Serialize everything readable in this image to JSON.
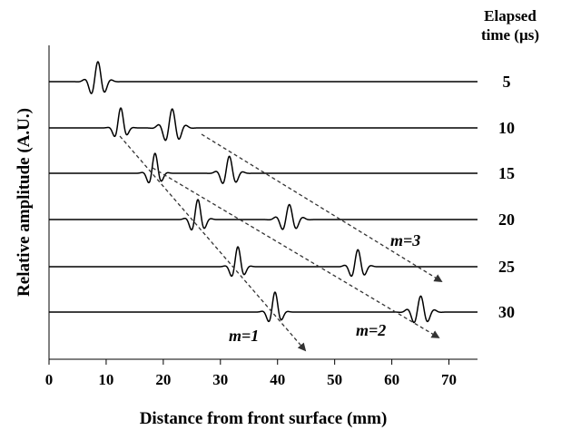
{
  "chart_data": {
    "type": "line",
    "xlabel": "Distance from front surface (mm)",
    "ylabel": "Relative amplitude (A.U.)",
    "xlim": [
      0,
      75
    ],
    "x_ticks": [
      "0",
      "10",
      "20",
      "30",
      "40",
      "50",
      "60",
      "70"
    ],
    "legend_title": [
      "Elapsed",
      "time (µs)"
    ],
    "legend_placement": "right",
    "grid": false,
    "series": [
      {
        "name": "5",
        "packets": [
          {
            "center": 8.5,
            "amp": 1.0,
            "width": 1.6
          }
        ]
      },
      {
        "name": "10",
        "packets": [
          {
            "center": 12.5,
            "amp": 1.0,
            "width": 1.2
          },
          {
            "center": 21.5,
            "amp": 0.95,
            "width": 1.8
          }
        ]
      },
      {
        "name": "15",
        "packets": [
          {
            "center": 18.5,
            "amp": 1.0,
            "width": 1.3
          },
          {
            "center": 31.5,
            "amp": 0.85,
            "width": 1.6
          }
        ]
      },
      {
        "name": "20",
        "packets": [
          {
            "center": 26.0,
            "amp": 1.0,
            "width": 1.4
          },
          {
            "center": 42.0,
            "amp": 0.75,
            "width": 1.8
          }
        ]
      },
      {
        "name": "25",
        "packets": [
          {
            "center": 33.0,
            "amp": 1.0,
            "width": 1.3
          },
          {
            "center": 54.0,
            "amp": 0.85,
            "width": 1.5
          }
        ]
      },
      {
        "name": "30",
        "packets": [
          {
            "center": 39.5,
            "amp": 1.0,
            "width": 1.3
          },
          {
            "center": 65.0,
            "amp": 0.8,
            "width": 1.8
          }
        ]
      }
    ],
    "annotations": [
      {
        "label": "m=1",
        "from": [
          12.5,
          "10"
        ],
        "to": [
          45.0,
          "30+"
        ]
      },
      {
        "label": "m=2",
        "from": [
          20.0,
          "15"
        ],
        "to": [
          68.0,
          "30"
        ]
      },
      {
        "label": "m=3",
        "from": [
          27.0,
          "10"
        ],
        "to": [
          69.0,
          "25"
        ]
      }
    ]
  }
}
